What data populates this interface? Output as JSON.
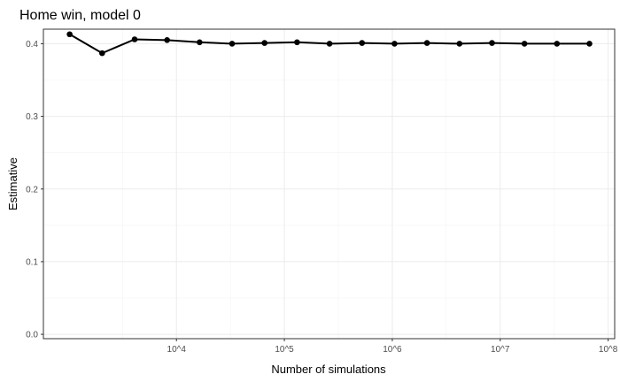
{
  "chart_data": {
    "type": "line",
    "title": "Home win, model 0",
    "xlabel": "Number of simulations",
    "ylabel": "Estimative",
    "x_scale": "log10",
    "xlim": [
      585,
      115000000
    ],
    "ylim": [
      -0.006,
      0.42
    ],
    "x_ticks": [
      {
        "value": 10000,
        "label": "10^4"
      },
      {
        "value": 100000,
        "label": "10^5"
      },
      {
        "value": 1000000,
        "label": "10^6"
      },
      {
        "value": 10000000,
        "label": "10^7"
      },
      {
        "value": 100000000,
        "label": "10^8"
      }
    ],
    "y_ticks": [
      {
        "value": 0.0,
        "label": "0.0"
      },
      {
        "value": 0.1,
        "label": "0.1"
      },
      {
        "value": 0.2,
        "label": "0.2"
      },
      {
        "value": 0.3,
        "label": "0.3"
      },
      {
        "value": 0.4,
        "label": "0.4"
      }
    ],
    "grid": true,
    "series": [
      {
        "x": [
          1024,
          2048,
          4096,
          8192,
          16384,
          32768,
          65536,
          131072,
          262144,
          524288,
          1048576,
          2097152,
          4194304,
          8388608,
          16777216,
          33554432,
          67108864
        ],
        "y": [
          0.413,
          0.387,
          0.406,
          0.405,
          0.402,
          0.4,
          0.401,
          0.402,
          0.4,
          0.401,
          0.4,
          0.401,
          0.4,
          0.401,
          0.4,
          0.4,
          0.4
        ]
      }
    ]
  }
}
